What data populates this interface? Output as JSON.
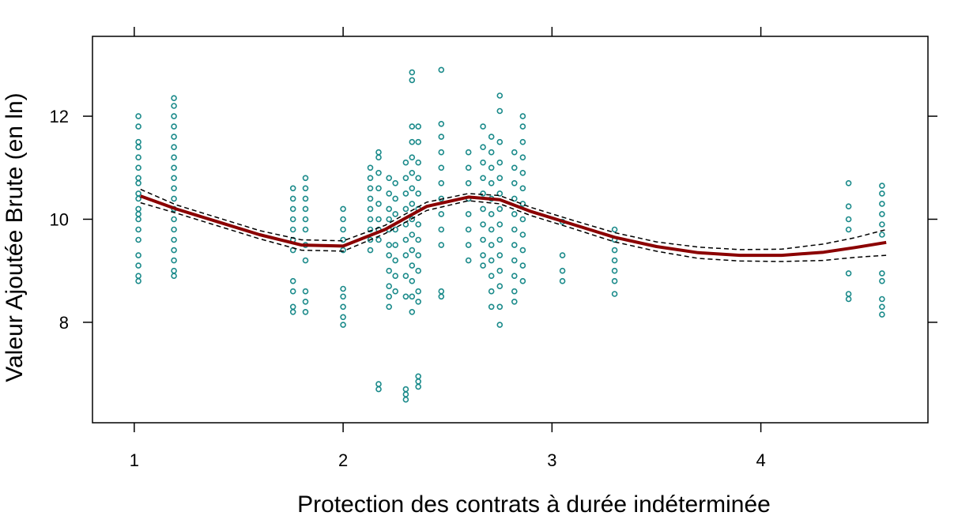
{
  "chart_data": {
    "type": "scatter",
    "title": "",
    "xlabel": "Protection des contrats à durée indéterminée",
    "ylabel": "Valeur Ajoutée Brute (en ln)",
    "xlim": [
      0.8,
      4.8
    ],
    "ylim": [
      6.05,
      13.55
    ],
    "x_ticks": [
      1,
      2,
      3,
      4
    ],
    "y_ticks": [
      8,
      10,
      12
    ],
    "grid": false,
    "legend": "none",
    "colors": {
      "points": "#1a8a8a",
      "fit": "#8b0000",
      "band": "#000000"
    },
    "scatter_groups": [
      {
        "x": 1.02,
        "y": [
          8.8,
          8.9,
          9.1,
          9.3,
          9.6,
          9.8,
          10.0,
          10.1,
          10.2,
          10.4,
          10.5,
          10.7,
          10.8,
          11.0,
          11.2,
          11.4,
          11.5,
          11.8,
          12.0
        ]
      },
      {
        "x": 1.19,
        "y": [
          8.9,
          9.0,
          9.2,
          9.4,
          9.6,
          9.8,
          10.0,
          10.2,
          10.4,
          10.6,
          10.8,
          11.0,
          11.2,
          11.4,
          11.6,
          11.8,
          12.0,
          12.2,
          12.35
        ]
      },
      {
        "x": 1.76,
        "y": [
          8.2,
          8.3,
          8.6,
          8.8,
          9.4,
          9.6,
          9.8,
          10.0,
          10.2,
          10.4,
          10.6
        ]
      },
      {
        "x": 1.82,
        "y": [
          8.2,
          8.4,
          8.6,
          9.2,
          9.5,
          9.8,
          10.0,
          10.2,
          10.4,
          10.6,
          10.8
        ]
      },
      {
        "x": 2.0,
        "y": [
          7.95,
          8.1,
          8.3,
          8.5,
          8.65,
          9.4,
          9.6,
          9.8,
          10.0,
          10.2
        ]
      },
      {
        "x": 2.13,
        "y": [
          9.4,
          9.6,
          9.8,
          10.0,
          10.2,
          10.4,
          10.6,
          10.8,
          11.0
        ]
      },
      {
        "x": 2.17,
        "y": [
          6.7,
          6.8,
          9.6,
          9.8,
          10.0,
          10.3,
          10.6,
          10.9,
          11.2,
          11.3
        ]
      },
      {
        "x": 2.22,
        "y": [
          8.3,
          8.5,
          8.7,
          9.0,
          9.3,
          9.5,
          9.8,
          10.0,
          10.2,
          10.5,
          10.8
        ]
      },
      {
        "x": 2.25,
        "y": [
          8.6,
          8.9,
          9.2,
          9.5,
          9.8,
          10.1,
          10.4,
          10.7
        ]
      },
      {
        "x": 2.3,
        "y": [
          6.5,
          6.6,
          6.7,
          8.5,
          8.9,
          9.3,
          9.6,
          9.9,
          10.2,
          10.5,
          10.8,
          11.1
        ]
      },
      {
        "x": 2.33,
        "y": [
          8.2,
          8.5,
          8.8,
          9.1,
          9.4,
          9.7,
          10.0,
          10.3,
          10.6,
          10.9,
          11.2,
          11.5,
          11.8,
          12.7,
          12.85
        ]
      },
      {
        "x": 2.36,
        "y": [
          6.75,
          6.85,
          6.95,
          8.4,
          8.6,
          9.0,
          9.3,
          9.6,
          9.9,
          10.2,
          10.5,
          10.8,
          11.1,
          11.5,
          11.8
        ]
      },
      {
        "x": 2.47,
        "y": [
          8.5,
          8.6,
          9.5,
          9.8,
          10.1,
          10.4,
          10.7,
          11.0,
          11.3,
          11.6,
          11.85,
          12.9
        ]
      },
      {
        "x": 2.6,
        "y": [
          9.2,
          9.5,
          9.8,
          10.1,
          10.4,
          10.7,
          11.0,
          11.3
        ]
      },
      {
        "x": 2.67,
        "y": [
          9.1,
          9.3,
          9.6,
          9.9,
          10.2,
          10.5,
          10.8,
          11.1,
          11.4,
          11.8
        ]
      },
      {
        "x": 2.71,
        "y": [
          8.3,
          8.6,
          8.9,
          9.2,
          9.5,
          9.8,
          10.1,
          10.4,
          10.7,
          11.0,
          11.3,
          11.6
        ]
      },
      {
        "x": 2.75,
        "y": [
          7.95,
          8.3,
          8.7,
          9.0,
          9.3,
          9.6,
          9.9,
          10.2,
          10.5,
          10.8,
          11.1,
          11.5,
          12.1,
          12.4
        ]
      },
      {
        "x": 2.82,
        "y": [
          8.4,
          8.6,
          8.9,
          9.2,
          9.5,
          9.8,
          10.1,
          10.4,
          10.7,
          11.0,
          11.3
        ]
      },
      {
        "x": 2.86,
        "y": [
          8.8,
          9.1,
          9.4,
          9.7,
          10.0,
          10.3,
          10.6,
          10.9,
          11.2,
          11.5,
          11.8,
          12.0
        ]
      },
      {
        "x": 3.05,
        "y": [
          8.8,
          9.0,
          9.3,
          9.95
        ]
      },
      {
        "x": 3.3,
        "y": [
          8.55,
          8.8,
          9.0,
          9.2,
          9.4,
          9.6,
          9.8
        ]
      },
      {
        "x": 4.42,
        "y": [
          8.45,
          8.55,
          8.95,
          9.8,
          10.0,
          10.25,
          10.7
        ]
      },
      {
        "x": 4.58,
        "y": [
          8.15,
          8.3,
          8.45,
          8.8,
          8.95,
          9.7,
          9.9,
          10.1,
          10.3,
          10.5,
          10.65
        ]
      }
    ],
    "fit_line": {
      "x": [
        1.03,
        1.2,
        1.4,
        1.6,
        1.8,
        2.0,
        2.2,
        2.4,
        2.6,
        2.75,
        2.9,
        3.1,
        3.3,
        3.5,
        3.7,
        3.9,
        4.1,
        4.3,
        4.45,
        4.6
      ],
      "y": [
        10.45,
        10.2,
        9.95,
        9.7,
        9.5,
        9.48,
        9.8,
        10.25,
        10.43,
        10.38,
        10.15,
        9.9,
        9.65,
        9.47,
        9.35,
        9.3,
        9.3,
        9.36,
        9.45,
        9.55
      ]
    },
    "band_upper": {
      "x": [
        1.03,
        1.2,
        1.4,
        1.6,
        1.8,
        2.0,
        2.2,
        2.4,
        2.6,
        2.75,
        2.9,
        3.1,
        3.3,
        3.5,
        3.7,
        3.9,
        4.1,
        4.3,
        4.45,
        4.6
      ],
      "y": [
        10.58,
        10.28,
        10.03,
        9.78,
        9.6,
        9.58,
        9.88,
        10.33,
        10.5,
        10.46,
        10.23,
        9.98,
        9.74,
        9.56,
        9.46,
        9.41,
        9.42,
        9.52,
        9.64,
        9.8
      ]
    },
    "band_lower": {
      "x": [
        1.03,
        1.2,
        1.4,
        1.6,
        1.8,
        2.0,
        2.2,
        2.4,
        2.6,
        2.75,
        2.9,
        3.1,
        3.3,
        3.5,
        3.7,
        3.9,
        4.1,
        4.3,
        4.45,
        4.6
      ],
      "y": [
        10.32,
        10.12,
        9.87,
        9.62,
        9.4,
        9.38,
        9.72,
        10.17,
        10.36,
        10.3,
        10.07,
        9.82,
        9.56,
        9.38,
        9.24,
        9.19,
        9.18,
        9.2,
        9.26,
        9.3
      ]
    }
  }
}
